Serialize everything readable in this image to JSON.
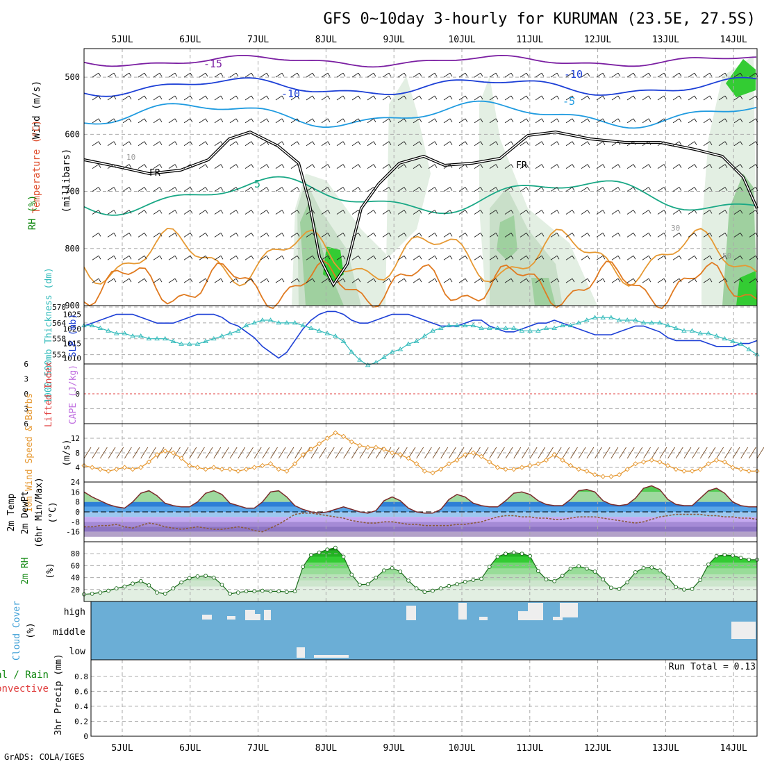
{
  "title": "GFS 0~10day 3-hourly for KURUMAN (23.5E, 27.5S)",
  "credit": "GrADS: COLA/IGES",
  "dates": [
    "5JUL",
    "6JUL",
    "7JUL",
    "8JUL",
    "9JUL",
    "10JUL",
    "11JUL",
    "12JUL",
    "13JUL",
    "14JUL"
  ],
  "colors": {
    "frame": "#000000",
    "grid": "#aaaaaa",
    "rh_green": "#33cc33",
    "slp_blue": "#1c3fd6",
    "thickness_cyan": "#33bbbb",
    "wind_orange": "#e69933",
    "barb_brown": "#7a4f2a",
    "cape_purple": "#c070e0",
    "lifted_red": "#e04040",
    "cloud_blue": "#6baed6",
    "cloud_white": "#eeeeee",
    "dew_brown": "#8b5a3c"
  },
  "legend_labels": {
    "upper_wind": "Wind (m/s)",
    "upper_temp": "Temperature (°C)",
    "upper_rh": "RH (%)",
    "upper_units": "(millibars)",
    "slp": "SLP (mb)",
    "thickness": "1000-500mb Thickness (dm)",
    "cape": "CAPE (J/kg)",
    "lifted": "Lifted Index",
    "wind10": "10m Wind Speed & Barbs",
    "wind10_units": "(m/s)",
    "temp2m": "2m Temp",
    "dew2m": "2m DewPt",
    "minmax": "(6hr Min/Max)",
    "temp_units": "(°C)",
    "rh2m": "2m RH",
    "rh_units": "(%)",
    "cloud": "Cloud Cover",
    "cloud_units": "(%)",
    "precip_total": "Total / Rain",
    "precip_conv": "Convective",
    "precip_axis": "3hr Precip (mm)",
    "run_total": "Run Total = 0.13"
  },
  "contour_labels": {
    "t_m15": "-15",
    "t_m10": "-10",
    "t_m10b": "-10",
    "t_m5": "-5",
    "t_p5": "5",
    "fr1": "FR",
    "fr2": "FR",
    "rh10": "10",
    "rh30": "30",
    "rh50": "50"
  },
  "cloud_levels": [
    "high",
    "middle",
    "low"
  ],
  "chart_data": [
    {
      "type": "heatmap",
      "panel": "upper-air cross section",
      "ylabel": "(millibars)",
      "y_ticks": [
        500,
        600,
        700,
        800,
        900
      ],
      "ylim": [
        900,
        450
      ],
      "contours": {
        "temperature_C": [
          -15,
          -10,
          -5,
          5
        ],
        "freezing_level": "FR",
        "rh_percent_labels": [
          10,
          30,
          50
        ]
      },
      "grid": true
    },
    {
      "type": "line",
      "panel": "SLP / thickness",
      "y_ticks_left": [
        552,
        558,
        564,
        570
      ],
      "y_ticks_right": [
        1010,
        1015,
        1020,
        1025
      ],
      "series": [
        {
          "name": "SLP (mb)",
          "axis": "right",
          "values": [
            1021,
            1022,
            1023,
            1024,
            1025,
            1025,
            1025,
            1024,
            1023,
            1022,
            1022,
            1022,
            1023,
            1024,
            1025,
            1025,
            1025,
            1024,
            1022,
            1021,
            1019,
            1017,
            1014,
            1012,
            1010,
            1012,
            1016,
            1020,
            1023,
            1025,
            1026,
            1026,
            1025,
            1023,
            1022,
            1022,
            1023,
            1024,
            1025,
            1025,
            1025,
            1024,
            1023,
            1022,
            1021,
            1021,
            1021,
            1022,
            1023,
            1023,
            1021,
            1020,
            1019,
            1019,
            1020,
            1021,
            1022,
            1022,
            1023,
            1022,
            1021,
            1020,
            1019,
            1018,
            1018,
            1018,
            1019,
            1020,
            1021,
            1021,
            1020,
            1019,
            1017,
            1016,
            1016,
            1016,
            1016,
            1015,
            1014,
            1014,
            1014,
            1015,
            1015,
            1016
          ]
        },
        {
          "name": "1000-500mb Thickness (dm)",
          "axis": "left",
          "values": [
            563,
            563,
            562,
            561,
            560,
            560,
            559,
            559,
            558,
            558,
            558,
            557,
            556,
            556,
            556,
            557,
            558,
            559,
            560,
            561,
            563,
            564,
            565,
            565,
            564,
            564,
            564,
            563,
            562,
            561,
            560,
            559,
            557,
            553,
            550,
            548,
            549,
            551,
            553,
            554,
            556,
            557,
            559,
            561,
            562,
            563,
            563,
            563,
            563,
            562,
            562,
            562,
            562,
            562,
            561,
            561,
            561,
            562,
            562,
            563,
            563,
            564,
            565,
            566,
            566,
            566,
            565,
            565,
            565,
            564,
            564,
            564,
            563,
            562,
            561,
            561,
            560,
            560,
            559,
            558,
            557,
            556,
            554,
            552
          ]
        }
      ]
    },
    {
      "type": "line",
      "panel": "CAPE / Lifted Index",
      "y_ticks": [
        6,
        3,
        0,
        -3,
        -6
      ],
      "y_tick_labels": [
        "6",
        "3",
        "0",
        "3",
        "6"
      ],
      "series": [
        {
          "name": "Lifted Index",
          "values": [
            0
          ]
        }
      ]
    },
    {
      "type": "line",
      "panel": "10m wind",
      "ylabel": "(m/s)",
      "y_ticks": [
        4,
        8,
        12
      ],
      "ylim": [
        0,
        16
      ],
      "series": [
        {
          "name": "10m Wind Speed",
          "values": [
            4.5,
            4.0,
            3.5,
            3.0,
            3.5,
            4.0,
            3.5,
            4.0,
            5.5,
            7.5,
            8.5,
            8.0,
            6.5,
            4.5,
            4.0,
            3.5,
            4.0,
            3.5,
            3.5,
            3.0,
            3.5,
            4.0,
            4.5,
            5.0,
            3.5,
            3.0,
            5.0,
            7.5,
            9.0,
            10.5,
            12.0,
            13.5,
            12.5,
            11.0,
            10.0,
            9.5,
            9.5,
            9.0,
            8.0,
            7.5,
            6.5,
            5.0,
            3.0,
            2.5,
            3.5,
            5.0,
            6.0,
            7.5,
            8.0,
            7.0,
            5.5,
            4.0,
            3.5,
            3.5,
            4.0,
            4.5,
            5.0,
            6.0,
            7.5,
            6.0,
            4.5,
            3.5,
            3.0,
            2.0,
            1.5,
            1.5,
            2.0,
            3.5,
            5.0,
            5.5,
            6.0,
            5.5,
            4.5,
            3.5,
            3.0,
            3.0,
            3.5,
            5.0,
            6.0,
            5.5,
            4.0,
            3.5,
            3.0,
            3.0
          ]
        }
      ]
    },
    {
      "type": "area",
      "panel": "2m temperature / dewpoint",
      "ylabel": "(°C)",
      "y_ticks": [
        -16,
        -8,
        0,
        8,
        16,
        24
      ],
      "ylim": [
        -24,
        24
      ],
      "series": [
        {
          "name": "2m Temp",
          "values": [
            16,
            12,
            9,
            6,
            4,
            3,
            8,
            15,
            17,
            13,
            7,
            5,
            4,
            4,
            8,
            15,
            17,
            14,
            7,
            5,
            3,
            3,
            8,
            16,
            17,
            12,
            5,
            2,
            0,
            -1,
            0,
            2,
            4,
            2,
            0,
            -1,
            1,
            9,
            12,
            9,
            3,
            0,
            -1,
            -1,
            2,
            10,
            14,
            12,
            7,
            5,
            4,
            4,
            9,
            15,
            16,
            14,
            9,
            6,
            5,
            5,
            10,
            17,
            18,
            16,
            9,
            6,
            5,
            6,
            11,
            19,
            21,
            18,
            10,
            6,
            5,
            5,
            11,
            17,
            19,
            15,
            8,
            5,
            4,
            4
          ]
        },
        {
          "name": "2m DewPt",
          "values": [
            -12,
            -12,
            -11,
            -11,
            -10,
            -12,
            -13,
            -11,
            -9,
            -10,
            -12,
            -13,
            -14,
            -13,
            -12,
            -13,
            -14,
            -14,
            -13,
            -12,
            -13,
            -15,
            -16,
            -13,
            -10,
            -6,
            -2,
            -1,
            -1,
            -2,
            -3,
            -4,
            -5,
            -7,
            -8,
            -9,
            -9,
            -8,
            -8,
            -9,
            -10,
            -10,
            -11,
            -11,
            -11,
            -11,
            -10,
            -10,
            -9,
            -8,
            -6,
            -4,
            -3,
            -3,
            -4,
            -4,
            -5,
            -5,
            -6,
            -6,
            -5,
            -4,
            -4,
            -4,
            -5,
            -6,
            -7,
            -8,
            -9,
            -8,
            -6,
            -4,
            -3,
            -2,
            -2,
            -2,
            -2,
            -3,
            -3,
            -4,
            -4,
            -5,
            -5,
            -6
          ]
        }
      ]
    },
    {
      "type": "area",
      "panel": "2m RH",
      "ylabel": "(%)",
      "y_ticks": [
        20,
        40,
        60,
        80
      ],
      "ylim": [
        0,
        100
      ],
      "series": [
        {
          "name": "2m RH",
          "values": [
            12,
            13,
            15,
            18,
            22,
            25,
            30,
            34,
            27,
            15,
            13,
            22,
            32,
            39,
            42,
            43,
            40,
            28,
            13,
            15,
            17,
            17,
            18,
            17,
            17,
            16,
            17,
            58,
            78,
            82,
            87,
            90,
            75,
            45,
            28,
            29,
            40,
            52,
            56,
            50,
            35,
            22,
            16,
            18,
            22,
            26,
            29,
            33,
            36,
            38,
            58,
            75,
            80,
            82,
            80,
            76,
            51,
            37,
            34,
            43,
            55,
            59,
            55,
            50,
            37,
            23,
            21,
            32,
            49,
            56,
            57,
            52,
            40,
            24,
            20,
            21,
            36,
            62,
            76,
            78,
            77,
            73,
            70,
            70
          ]
        }
      ]
    },
    {
      "type": "bar",
      "panel": "cloud cover",
      "ylabel": "(%)",
      "categories": [
        "high",
        "middle",
        "low"
      ],
      "values": [
        0,
        0,
        0
      ]
    },
    {
      "type": "bar",
      "panel": "3hr precipitation",
      "ylabel": "3hr Precip (mm)",
      "y_ticks": [
        0,
        0.2,
        0.4,
        0.6,
        0.8
      ],
      "ylim": [
        0,
        1
      ],
      "values": [
        0
      ],
      "annotation": "Run Total = 0.13"
    }
  ]
}
